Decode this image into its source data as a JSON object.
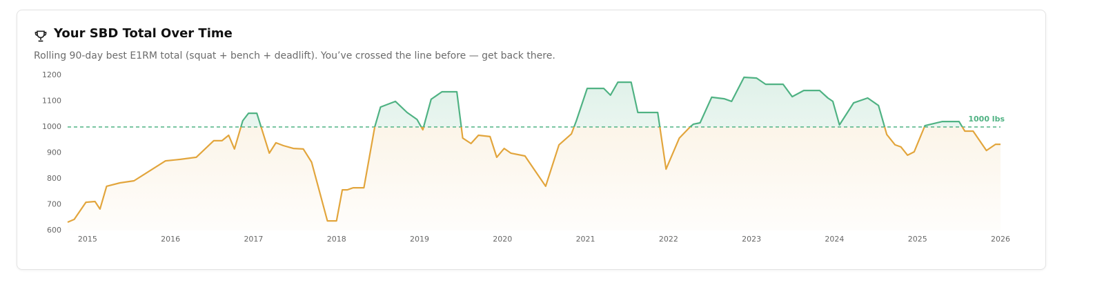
{
  "chart_data": {
    "type": "line",
    "title": "Your SBD Total Over Time",
    "subtitle": "Rolling 90-day best E1RM total (squat + bench + deadlift). You’ve crossed the line before — get back there.",
    "x": [
      2014.76,
      2014.84,
      2014.98,
      2015.09,
      2015.15,
      2015.23,
      2015.39,
      2015.56,
      2015.94,
      2016.12,
      2016.31,
      2016.52,
      2016.62,
      2016.7,
      2016.77,
      2016.87,
      2016.94,
      2017.04,
      2017.19,
      2017.27,
      2017.36,
      2017.48,
      2017.6,
      2017.7,
      2017.89,
      2018.0,
      2018.07,
      2018.13,
      2018.2,
      2018.33,
      2018.46,
      2018.53,
      2018.71,
      2018.85,
      2018.97,
      2019.04,
      2019.14,
      2019.27,
      2019.45,
      2019.52,
      2019.62,
      2019.71,
      2019.85,
      2019.93,
      2020.02,
      2020.1,
      2020.27,
      2020.52,
      2020.68,
      2020.83,
      2020.89,
      2021.02,
      2021.22,
      2021.3,
      2021.39,
      2021.55,
      2021.63,
      2021.87,
      2021.97,
      2022.13,
      2022.26,
      2022.3,
      2022.38,
      2022.52,
      2022.67,
      2022.76,
      2022.91,
      2023.06,
      2023.17,
      2023.38,
      2023.49,
      2023.63,
      2023.82,
      2023.92,
      2023.98,
      2024.06,
      2024.23,
      2024.4,
      2024.53,
      2024.63,
      2024.73,
      2024.8,
      2024.88,
      2024.96,
      2025.09,
      2025.3,
      2025.5,
      2025.57,
      2025.67,
      2025.83,
      2025.94,
      2026.0
    ],
    "series": [
      {
        "name": "SBD Total",
        "above_color": "#4fb283",
        "below_color": "#e2a53c",
        "values": [
          632,
          643,
          709,
          712,
          683,
          771,
          784,
          792,
          869,
          875,
          883,
          947,
          947,
          968,
          915,
          1024,
          1053,
          1053,
          899,
          939,
          928,
          917,
          915,
          864,
          637,
          637,
          757,
          757,
          765,
          765,
          1000,
          1077,
          1099,
          1056,
          1029,
          989,
          1107,
          1136,
          1136,
          957,
          936,
          968,
          963,
          883,
          917,
          899,
          888,
          771,
          931,
          973,
          1024,
          1149,
          1149,
          1123,
          1173,
          1173,
          1056,
          1056,
          837,
          957,
          1000,
          1011,
          1016,
          1115,
          1109,
          1099,
          1192,
          1189,
          1165,
          1165,
          1117,
          1141,
          1141,
          1112,
          1099,
          1008,
          1093,
          1112,
          1083,
          971,
          931,
          923,
          891,
          904,
          1005,
          1021,
          1021,
          984,
          984,
          909,
          933,
          933
        ]
      }
    ],
    "threshold": {
      "value": 1000,
      "label": "1000 lbs"
    },
    "xlim": [
      2014.76,
      2026.0
    ],
    "xticks": [
      2015,
      2016,
      2017,
      2018,
      2019,
      2020,
      2021,
      2022,
      2023,
      2024,
      2025,
      2026
    ],
    "ylim": [
      600,
      1200
    ],
    "yticks": [
      600,
      700,
      800,
      900,
      1000,
      1100,
      1200
    ],
    "grid": false
  }
}
